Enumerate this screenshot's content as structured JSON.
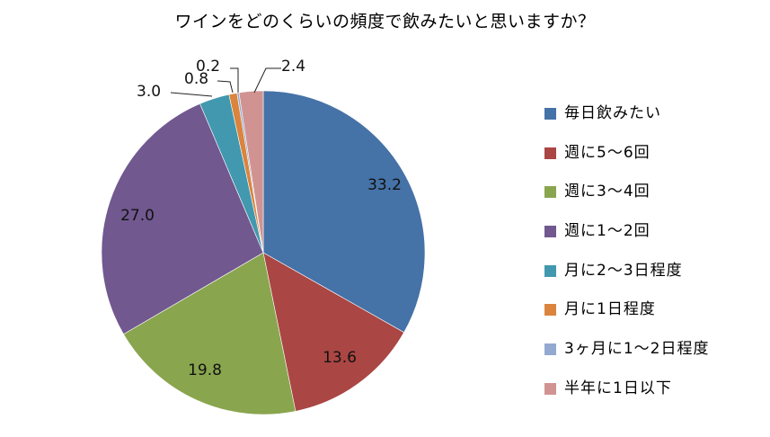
{
  "title": "ワインをどのくらいの頻度で飲みたいと思いますか？",
  "chart_data": {
    "type": "pie",
    "title": "ワインをどのくらいの頻度で飲みたいと思いますか？",
    "categories": [
      "毎日飲みたい",
      "週に5～6回",
      "週に3～4回",
      "週に1～2回",
      "月に2～3日程度",
      "月に1日程度",
      "3ヶ月に1～2日程度",
      "半年に1日以下"
    ],
    "values": [
      33.2,
      13.6,
      19.8,
      27.0,
      3.0,
      0.8,
      0.2,
      2.4
    ],
    "labels": [
      "33.2",
      "13.6",
      "19.8",
      "27.0",
      "3.0",
      "0.8",
      "0.2",
      "2.4"
    ],
    "colors": [
      "#4572a7",
      "#aa4643",
      "#89a54e",
      "#71588f",
      "#4198af",
      "#db843d",
      "#93a9cf",
      "#d19392"
    ],
    "start_angle_deg": 0,
    "direction": "clockwise",
    "legend_position": "right",
    "unit": "%"
  },
  "legend": {
    "items": [
      {
        "label": "毎日飲みたい",
        "color": "#4572a7"
      },
      {
        "label": "週に5～6回",
        "color": "#aa4643"
      },
      {
        "label": "週に3～4回",
        "color": "#89a54e"
      },
      {
        "label": "週に1～2回",
        "color": "#71588f"
      },
      {
        "label": "月に2～3日程度",
        "color": "#4198af"
      },
      {
        "label": "月に1日程度",
        "color": "#db843d"
      },
      {
        "label": "3ヶ月に1～2日程度",
        "color": "#93a9cf"
      },
      {
        "label": "半年に1日以下",
        "color": "#d19392"
      }
    ]
  }
}
